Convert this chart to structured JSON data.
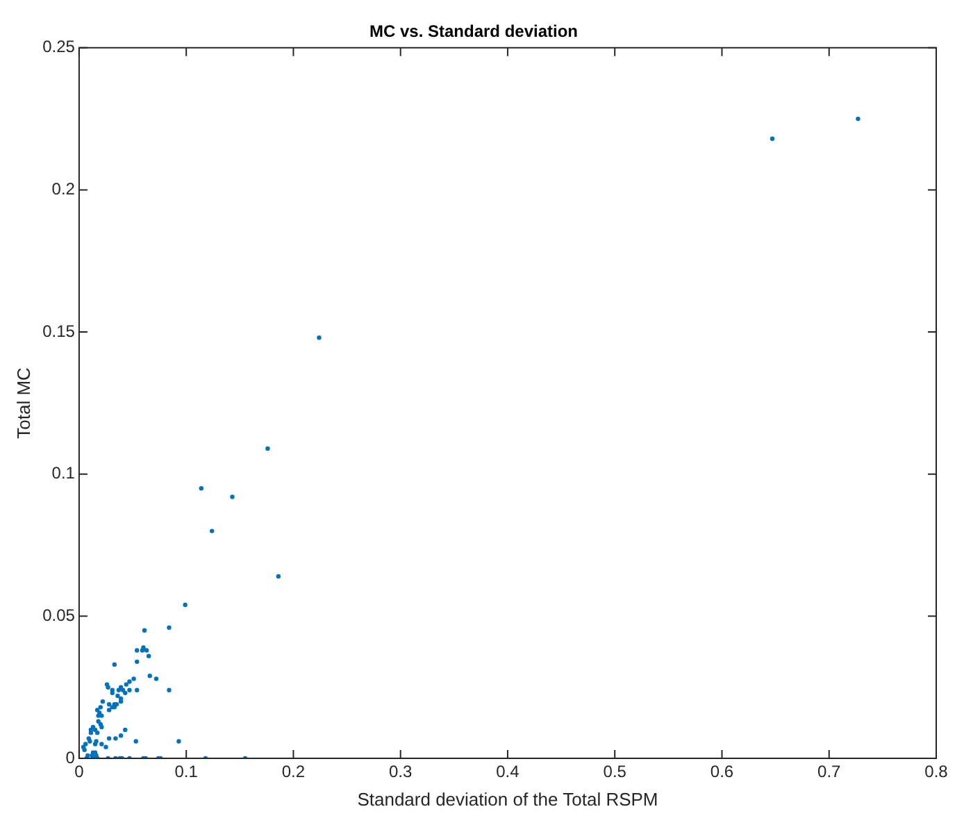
{
  "chart_data": {
    "type": "scatter",
    "title": "MC vs. Standard deviation",
    "xlabel": "Standard deviation of the Total RSPM",
    "ylabel": "Total MC",
    "xlim": [
      0,
      0.8
    ],
    "xticks": [
      0,
      0.1,
      0.2,
      0.3,
      0.4,
      0.5,
      0.6,
      0.7,
      0.8
    ],
    "ylim": [
      0,
      0.25
    ],
    "yticks": [
      0,
      0.05,
      0.1,
      0.15,
      0.2,
      0.25
    ],
    "marker": "circle",
    "series": [
      {
        "color": "#0072bd",
        "x": [
          0.647,
          0.727,
          0.224,
          0.176,
          0.114,
          0.143,
          0.124,
          0.186,
          0.099,
          0.061,
          0.084,
          0.054,
          0.06,
          0.059,
          0.063,
          0.065,
          0.054,
          0.033,
          0.066,
          0.072,
          0.051,
          0.047,
          0.044,
          0.039,
          0.026,
          0.027,
          0.037,
          0.031,
          0.041,
          0.054,
          0.084,
          0.031,
          0.043,
          0.047,
          0.036,
          0.039,
          0.039,
          0.022,
          0.028,
          0.033,
          0.035,
          0.033,
          0.031,
          0.02,
          0.028,
          0.017,
          0.019,
          0.018,
          0.021,
          0.018,
          0.02,
          0.013,
          0.021,
          0.015,
          0.011,
          0.017,
          0.043,
          0.011,
          0.039,
          0.034,
          0.028,
          0.009,
          0.01,
          0.016,
          0.015,
          0.021,
          0.025,
          0.053,
          0.093,
          0.006,
          0.004,
          0.005,
          0.013,
          0.015,
          0.014,
          0.008,
          0.012,
          0.016,
          0.007,
          0.017,
          0.027,
          0.034,
          0.038,
          0.04,
          0.047,
          0.06,
          0.062,
          0.074,
          0.076,
          0.118,
          0.155
        ],
        "values": [
          0.218,
          0.225,
          0.148,
          0.109,
          0.095,
          0.092,
          0.08,
          0.064,
          0.054,
          0.045,
          0.046,
          0.038,
          0.039,
          0.038,
          0.038,
          0.036,
          0.034,
          0.033,
          0.029,
          0.028,
          0.028,
          0.027,
          0.026,
          0.025,
          0.026,
          0.025,
          0.024,
          0.024,
          0.024,
          0.024,
          0.024,
          0.023,
          0.023,
          0.024,
          0.022,
          0.021,
          0.02,
          0.02,
          0.019,
          0.019,
          0.019,
          0.018,
          0.018,
          0.018,
          0.017,
          0.017,
          0.016,
          0.015,
          0.015,
          0.013,
          0.012,
          0.011,
          0.011,
          0.01,
          0.01,
          0.009,
          0.01,
          0.009,
          0.008,
          0.007,
          0.007,
          0.007,
          0.006,
          0.006,
          0.005,
          0.005,
          0.004,
          0.006,
          0.006,
          0.005,
          0.004,
          0.003,
          0.002,
          0.002,
          0.001,
          0.001,
          0.001,
          0.001,
          0,
          0,
          0,
          0,
          0,
          0,
          0,
          0,
          0,
          0,
          0,
          0,
          0
        ]
      }
    ]
  }
}
